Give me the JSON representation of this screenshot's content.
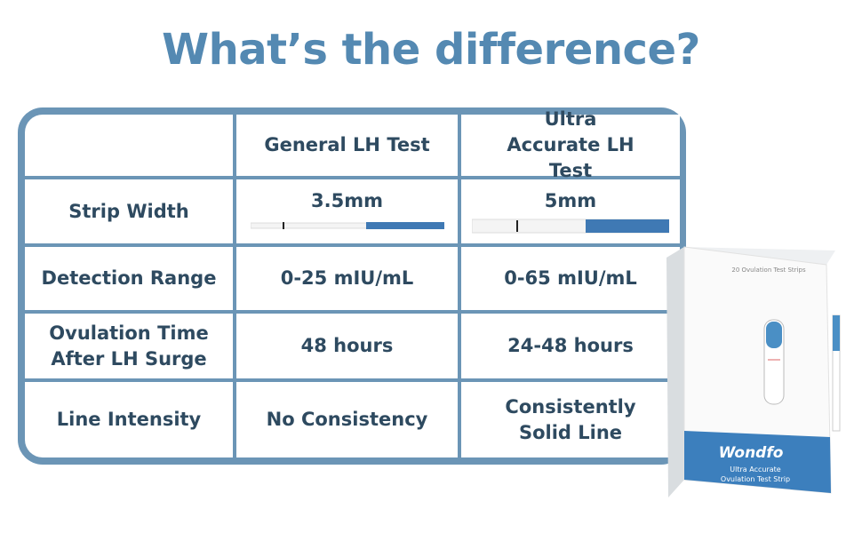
{
  "title": "What’s the difference?",
  "table": {
    "header": [
      "General LH Test",
      "Ultra Accurate LH Test"
    ],
    "rows": [
      [
        "Strip Width",
        "3.5mm",
        "5mm"
      ],
      [
        "Detection Range",
        "0-25 mIU/mL",
        "0-65 mIU/mL"
      ],
      [
        "Ovulation Time After LH Surge",
        "48 hours",
        "24-48 hours"
      ],
      [
        "Line Intensity",
        "No Consistency",
        "Consistently Solid Line"
      ]
    ]
  },
  "product": {
    "count": "20 Ovulation Test Strips",
    "brand": "Wondfo",
    "line1": "Ultra Accurate",
    "line2": "Ovulation Test Strip"
  }
}
